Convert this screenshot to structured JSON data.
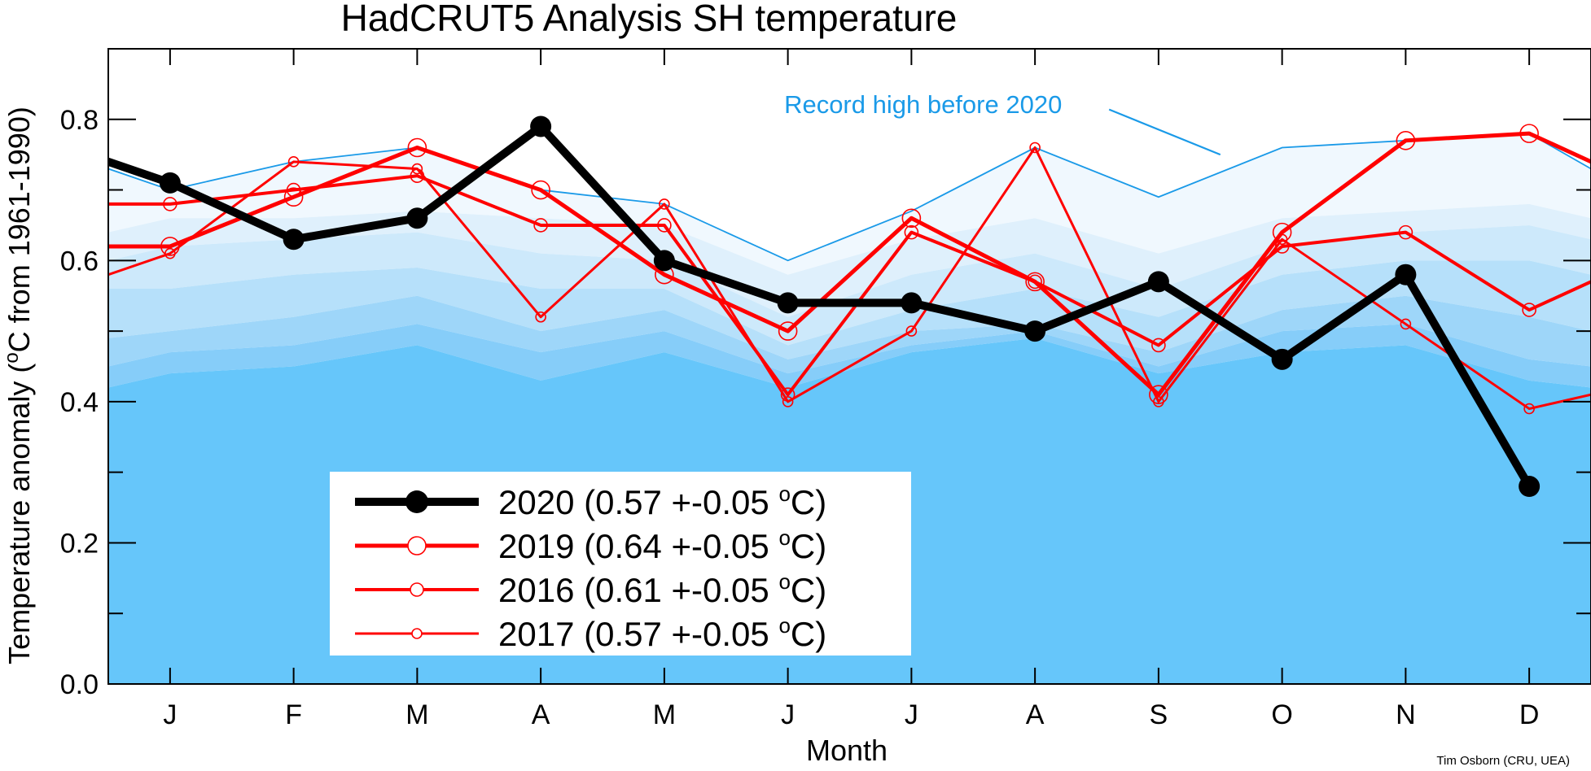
{
  "chart_data": {
    "type": "line",
    "title": "HadCRUT5 Analysis SH temperature",
    "xlabel": "Month",
    "ylabel": "Temperature anomaly (°C from 1961-1990)",
    "ylabel_parts": [
      "Temperature anomaly (",
      "o",
      "C from 1961-1990)"
    ],
    "categories": [
      "J",
      "F",
      "M",
      "A",
      "M",
      "J",
      "J",
      "A",
      "S",
      "O",
      "N",
      "D"
    ],
    "xlim": [
      0.5,
      12.5
    ],
    "ylim": [
      0.0,
      0.9
    ],
    "yticks": [
      0.0,
      0.2,
      0.4,
      0.6,
      0.8
    ],
    "ytick_labels": [
      "0.0",
      "0.2",
      "0.4",
      "0.6",
      "0.8"
    ],
    "yminor_step": 0.1,
    "record_high": {
      "name": "Record high before 2020",
      "color": "#1a9ae8",
      "values": [
        0.7,
        0.74,
        0.76,
        0.7,
        0.68,
        0.6,
        0.67,
        0.76,
        0.69,
        0.76,
        0.77,
        0.78
      ],
      "edge_values": [
        0.73,
        0.73
      ]
    },
    "background_bands": {
      "colors": [
        "#f0f8fe",
        "#dff0fc",
        "#cde9fb",
        "#b6e0fa",
        "#9ed6f9",
        "#86cdf9",
        "#66c6fa"
      ],
      "levels": [
        [
          0.66,
          0.66,
          0.67,
          0.66,
          0.65,
          0.58,
          0.63,
          0.66,
          0.61,
          0.66,
          0.67,
          0.68
        ],
        [
          0.62,
          0.63,
          0.64,
          0.61,
          0.6,
          0.52,
          0.58,
          0.61,
          0.56,
          0.62,
          0.64,
          0.65
        ],
        [
          0.56,
          0.58,
          0.59,
          0.56,
          0.56,
          0.48,
          0.53,
          0.56,
          0.52,
          0.58,
          0.6,
          0.6
        ],
        [
          0.5,
          0.52,
          0.55,
          0.5,
          0.53,
          0.46,
          0.5,
          0.51,
          0.47,
          0.53,
          0.55,
          0.52
        ],
        [
          0.47,
          0.48,
          0.51,
          0.47,
          0.5,
          0.44,
          0.48,
          0.5,
          0.45,
          0.5,
          0.51,
          0.46
        ],
        [
          0.44,
          0.45,
          0.48,
          0.43,
          0.47,
          0.42,
          0.47,
          0.49,
          0.44,
          0.47,
          0.48,
          0.43
        ]
      ],
      "edge_levels": [
        [
          0.64,
          0.66
        ],
        [
          0.6,
          0.63
        ],
        [
          0.56,
          0.58
        ],
        [
          0.49,
          0.5
        ],
        [
          0.45,
          0.45
        ],
        [
          0.42,
          0.42
        ]
      ]
    },
    "annotation": {
      "text": "Record high before 2020",
      "color": "#1a9ae8"
    },
    "series": [
      {
        "name": "2017",
        "label": "2017 (0.57 +-0.05 °C)",
        "label_parts": [
          "2017 (0.57 +-0.05 ",
          "o",
          "C)"
        ],
        "color": "#ff0000",
        "line_width": 3,
        "marker": "open-circle",
        "marker_size": 6,
        "values": [
          0.61,
          0.74,
          0.73,
          0.52,
          0.68,
          0.4,
          0.5,
          0.76,
          0.4,
          0.63,
          0.51,
          0.39
        ],
        "edge_values": [
          0.58,
          0.41
        ]
      },
      {
        "name": "2016",
        "label": "2016 (0.61 +-0.05 °C)",
        "label_parts": [
          "2016 (0.61 +-0.05 ",
          "o",
          "C)"
        ],
        "color": "#ff0000",
        "line_width": 4,
        "marker": "open-circle",
        "marker_size": 8,
        "values": [
          0.68,
          0.7,
          0.72,
          0.65,
          0.65,
          0.41,
          0.64,
          0.57,
          0.48,
          0.62,
          0.64,
          0.53
        ],
        "edge_values": [
          0.68,
          0.57
        ]
      },
      {
        "name": "2019",
        "label": "2019 (0.64 +-0.05 °C)",
        "label_parts": [
          "2019 (0.64 +-0.05 ",
          "o",
          "C)"
        ],
        "color": "#ff0000",
        "line_width": 5,
        "marker": "open-circle",
        "marker_size": 11,
        "values": [
          0.62,
          0.69,
          0.76,
          0.7,
          0.58,
          0.5,
          0.66,
          0.57,
          0.41,
          0.64,
          0.77,
          0.78
        ],
        "edge_values": [
          0.62,
          0.74
        ]
      },
      {
        "name": "2020",
        "label": "2020 (0.57 +-0.05 °C)",
        "label_parts": [
          "2020 (0.57 +-0.05 ",
          "o",
          "C)"
        ],
        "color": "#000000",
        "line_width": 10,
        "marker": "filled-circle",
        "marker_size": 13,
        "values": [
          0.71,
          0.63,
          0.66,
          0.79,
          0.6,
          0.54,
          0.54,
          0.5,
          0.57,
          0.46,
          0.58,
          0.28
        ],
        "edge_values": [
          0.74,
          null
        ]
      }
    ],
    "legend_order": [
      "2020",
      "2019",
      "2016",
      "2017"
    ],
    "legend_position": "bottom-left"
  },
  "credit": "Tim Osborn (CRU, UEA)"
}
